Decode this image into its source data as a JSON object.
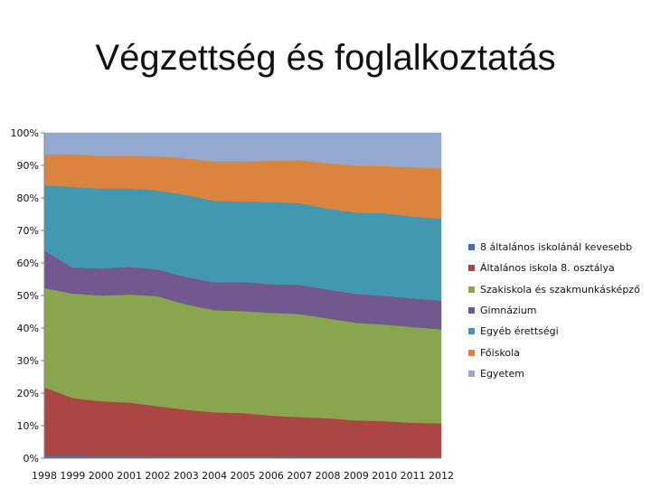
{
  "title": "Végzettség és foglalkoztatás",
  "chart_data": {
    "type": "area",
    "stacked": true,
    "percent": true,
    "title": "Végzettség és foglalkoztatás",
    "xlabel": "",
    "ylabel": "",
    "categories": [
      "1998",
      "1999",
      "2000",
      "2001",
      "2002",
      "2003",
      "2004",
      "2005",
      "2006",
      "2007",
      "2008",
      "2009",
      "2010",
      "2011",
      "2012"
    ],
    "ylim": [
      0,
      100
    ],
    "yticks": [
      "0%",
      "10%",
      "20%",
      "30%",
      "40%",
      "50%",
      "60%",
      "70%",
      "80%",
      "90%",
      "100%"
    ],
    "grid": false,
    "legend_position": "right",
    "series": [
      {
        "name": "8 általános iskolánál kevesebb",
        "color": "#4572a7",
        "values": [
          0.8,
          0.8,
          0.7,
          0.7,
          0.6,
          0.5,
          0.5,
          0.5,
          0.5,
          0.4,
          0.4,
          0.4,
          0.4,
          0.3,
          0.3
        ]
      },
      {
        "name": "Általános iskola 8. osztálya",
        "color": "#aa4643",
        "values": [
          21.0,
          17.7,
          16.8,
          16.4,
          15.4,
          14.4,
          13.6,
          13.4,
          12.6,
          12.2,
          11.9,
          11.2,
          11.0,
          10.6,
          10.4
        ]
      },
      {
        "name": "Szakiskola és szakmunkásképző",
        "color": "#89a54e",
        "values": [
          30.5,
          32.1,
          32.5,
          33.2,
          33.8,
          32.4,
          31.4,
          31.3,
          31.6,
          31.7,
          30.7,
          30.0,
          29.7,
          29.4,
          28.9
        ]
      },
      {
        "name": "Gimnázium",
        "color": "#71588f",
        "values": [
          11.5,
          8.0,
          8.3,
          8.5,
          8.2,
          8.4,
          8.6,
          8.9,
          8.8,
          9.0,
          8.8,
          8.9,
          8.8,
          8.8,
          8.8
        ]
      },
      {
        "name": "Egyéb érettségi",
        "color": "#4198af",
        "values": [
          20.0,
          24.8,
          24.6,
          24.1,
          24.3,
          25.2,
          25.0,
          24.8,
          25.2,
          25.1,
          24.9,
          25.0,
          25.4,
          25.2,
          25.2
        ]
      },
      {
        "name": "Főiskola",
        "color": "#db843d",
        "values": [
          9.5,
          10.1,
          10.0,
          10.1,
          10.5,
          11.3,
          12.1,
          12.3,
          12.7,
          13.2,
          14.0,
          14.4,
          14.5,
          15.1,
          15.5
        ]
      },
      {
        "name": "Egyetem",
        "color": "#93a9cf",
        "values": [
          6.7,
          6.5,
          7.1,
          7.0,
          7.2,
          7.8,
          8.8,
          8.8,
          8.6,
          8.4,
          9.3,
          10.1,
          10.2,
          10.6,
          10.9
        ]
      }
    ]
  }
}
